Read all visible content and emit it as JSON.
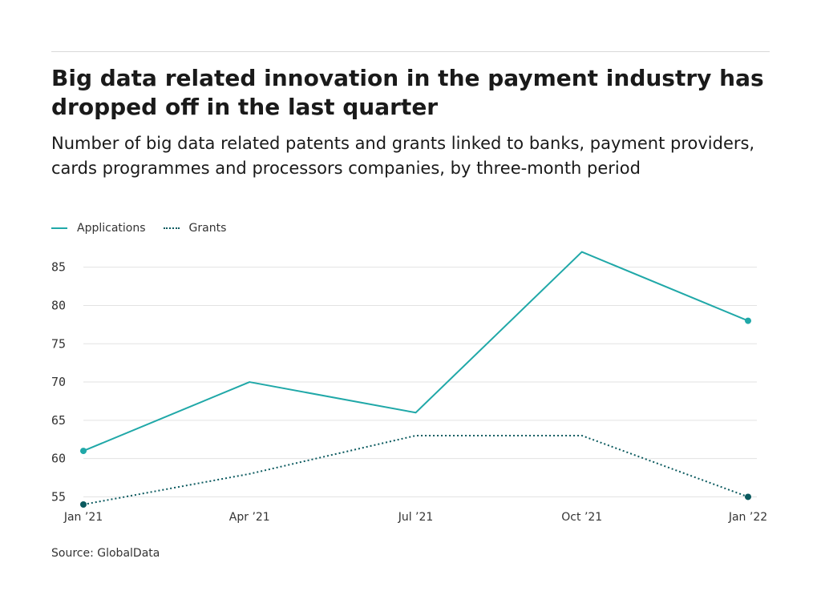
{
  "title": "Big data related innovation in the payment industry has dropped off in the last quarter",
  "subtitle": "Number of big data related patents and grants linked to banks, payment providers, cards programmes and processors companies, by three-month period",
  "source": "Source: GlobalData",
  "colors": {
    "applications": "#20a8a8",
    "grants": "#0b5a5f",
    "grid": "#e2e2e2",
    "text": "#1a1a1a",
    "axis_text": "#333333"
  },
  "legend": {
    "applications": "Applications",
    "grants": "Grants"
  },
  "chart_data": {
    "type": "line",
    "title": "",
    "xlabel": "",
    "ylabel": "",
    "x": [
      "Jan ’21",
      "Apr ’21",
      "Jul ’21",
      "Oct ’21",
      "Jan ’22"
    ],
    "ylim": [
      54,
      88
    ],
    "yticks": [
      55,
      60,
      65,
      70,
      75,
      80,
      85
    ],
    "grid": true,
    "legend_position": "top-left",
    "series": [
      {
        "name": "Applications",
        "style": "solid",
        "values": [
          61,
          70,
          66,
          87,
          78
        ],
        "end_markers": true
      },
      {
        "name": "Grants",
        "style": "dotted",
        "values": [
          54,
          58,
          63,
          63,
          55
        ],
        "end_markers": true
      }
    ]
  }
}
